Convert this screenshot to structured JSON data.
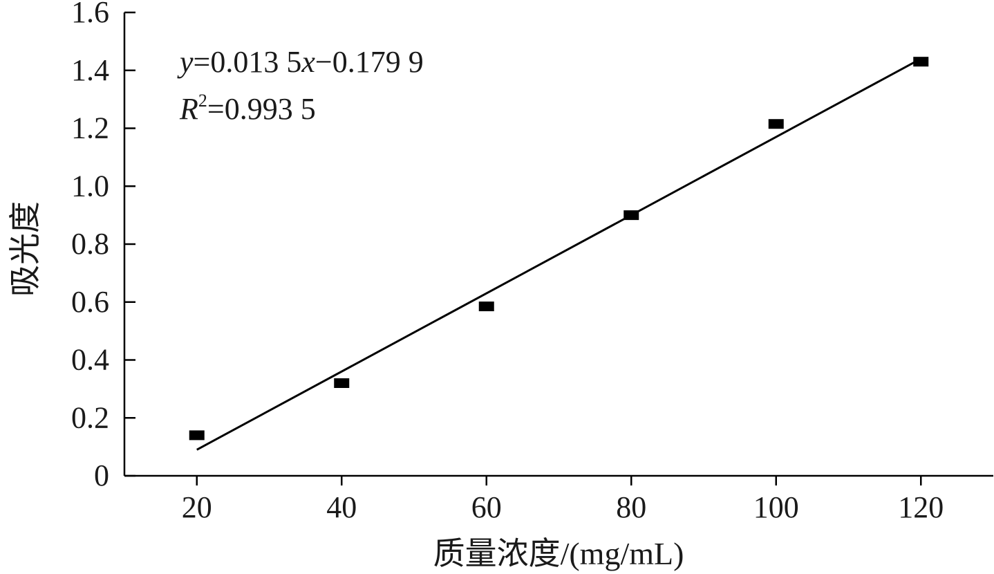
{
  "chart_data": {
    "type": "scatter",
    "xlabel": "质量浓度/(mg/mL)",
    "ylabel": "吸光度",
    "xlim": [
      10,
      130
    ],
    "ylim": [
      0,
      1.6
    ],
    "x_ticks": [
      "20",
      "40",
      "60",
      "80",
      "100",
      "120"
    ],
    "y_ticks": [
      "0",
      "0.2",
      "0.4",
      "0.6",
      "0.8",
      "1.0",
      "1.2",
      "1.4",
      "1.6"
    ],
    "grid": false,
    "series": [
      {
        "marker": "square",
        "color": "#000000",
        "points": [
          {
            "x": 20,
            "y": 0.14
          },
          {
            "x": 40,
            "y": 0.32
          },
          {
            "x": 60,
            "y": 0.585
          },
          {
            "x": 80,
            "y": 0.9
          },
          {
            "x": 100,
            "y": 1.215
          },
          {
            "x": 120,
            "y": 1.43
          }
        ]
      }
    ],
    "fit_line": {
      "slope": 0.0135,
      "intercept": -0.1799,
      "x_range": [
        20,
        120
      ],
      "color": "#000000"
    },
    "annotations": {
      "equation": {
        "y": "y",
        "eq1": "=0.013 5",
        "x": "x",
        "eq2": "−0.179 9"
      },
      "r_squared": {
        "r": "R",
        "sup": "2",
        "value": "=0.993 5"
      }
    }
  }
}
